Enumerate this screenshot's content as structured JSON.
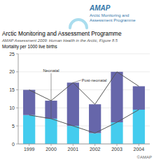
{
  "chart_data": {
    "type": "bar",
    "stacked": true,
    "title": "Arctic Monitoring and Assessment Programme",
    "subtitle": "AMAP Assessment 2009: Human Health in the Arctic, Figure 8.5",
    "ylabel": "Mortality per 1000 live births",
    "categories": [
      "1999",
      "2000",
      "2001",
      "2002",
      "2003",
      "2004"
    ],
    "series": [
      {
        "name": "Neonatal",
        "color": "#44ccee",
        "values": [
          8,
          7,
          5,
          3,
          6,
          9.5
        ]
      },
      {
        "name": "Post-neonatal",
        "color": "#6666aa",
        "values": [
          7,
          5,
          12,
          8,
          14,
          6.5
        ]
      },
      {
        "type": "line",
        "color": "#555555",
        "values": [
          15,
          12,
          17,
          11,
          20,
          16
        ]
      },
      {
        "type": "line",
        "color": "#555555",
        "values": [
          8,
          7,
          5,
          3,
          6,
          9.5
        ]
      }
    ],
    "ylim": [
      0,
      25
    ],
    "yticks": [
      0,
      5,
      10,
      15,
      20,
      25
    ],
    "grid": true,
    "annotations": [
      {
        "text": "AMAP",
        "color": "#3377aa"
      },
      {
        "text": "Arctic Monitoring and",
        "color": "#3377aa"
      },
      {
        "text": "Assessment Programme",
        "color": "#3377aa"
      },
      {
        "text": "©AMAP",
        "color": "#666666"
      }
    ]
  }
}
